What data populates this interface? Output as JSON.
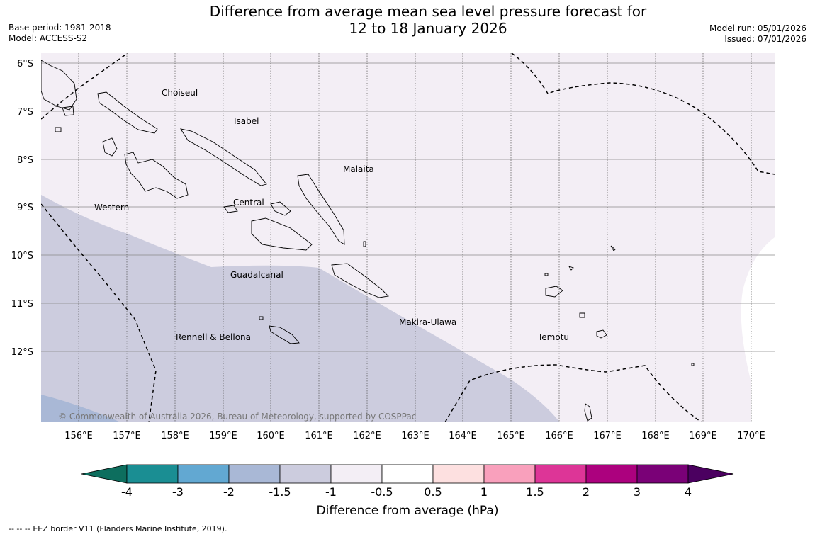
{
  "header": {
    "title_line1": "Difference from average mean sea level pressure forecast for",
    "title_line2": "12 to 18 January 2026",
    "base_period": "Base period: 1981-2018",
    "model": "Model: ACCESS-S2",
    "model_run": "Model run: 05/01/2026",
    "issued": "Issued: 07/01/2026"
  },
  "map": {
    "lat_ticks": [
      "6°S",
      "7°S",
      "8°S",
      "9°S",
      "10°S",
      "11°S",
      "12°S"
    ],
    "lon_ticks": [
      "156°E",
      "157°E",
      "158°E",
      "159°E",
      "160°E",
      "161°E",
      "162°E",
      "163°E",
      "164°E",
      "165°E",
      "166°E",
      "167°E",
      "168°E",
      "169°E",
      "170°E"
    ],
    "regions": [
      {
        "name": "Choiseul"
      },
      {
        "name": "Isabel"
      },
      {
        "name": "Malaita"
      },
      {
        "name": "Western"
      },
      {
        "name": "Central"
      },
      {
        "name": "Guadalcanal"
      },
      {
        "name": "Makira-Ulawa"
      },
      {
        "name": "Rennell & Bellona"
      },
      {
        "name": "Temotu"
      }
    ],
    "copyright": "© Commonwealth of Australia 2026, Bureau of Meteorology, supported by COSPPac"
  },
  "colorbar": {
    "title": "Difference from average (hPa)",
    "labels": [
      "-4",
      "-3",
      "-2",
      "-1.5",
      "-1",
      "-0.5",
      "0.5",
      "1",
      "1.5",
      "2",
      "3",
      "4"
    ],
    "colors": [
      "#1a8e93",
      "#62a8d2",
      "#a9b8d6",
      "#ccccde",
      "#f3eef5",
      "#ffffff",
      "#fde0e0",
      "#f9a0bc",
      "#dd3597",
      "#ac017e",
      "#7a0177"
    ],
    "extend_low_color": "#0d6e5e",
    "extend_high_color": "#4b0060"
  },
  "footer": {
    "legend_dash": "-- -- --",
    "legend_text": "EEZ border V11 (Flanders Marine Institute, 2019)."
  }
}
